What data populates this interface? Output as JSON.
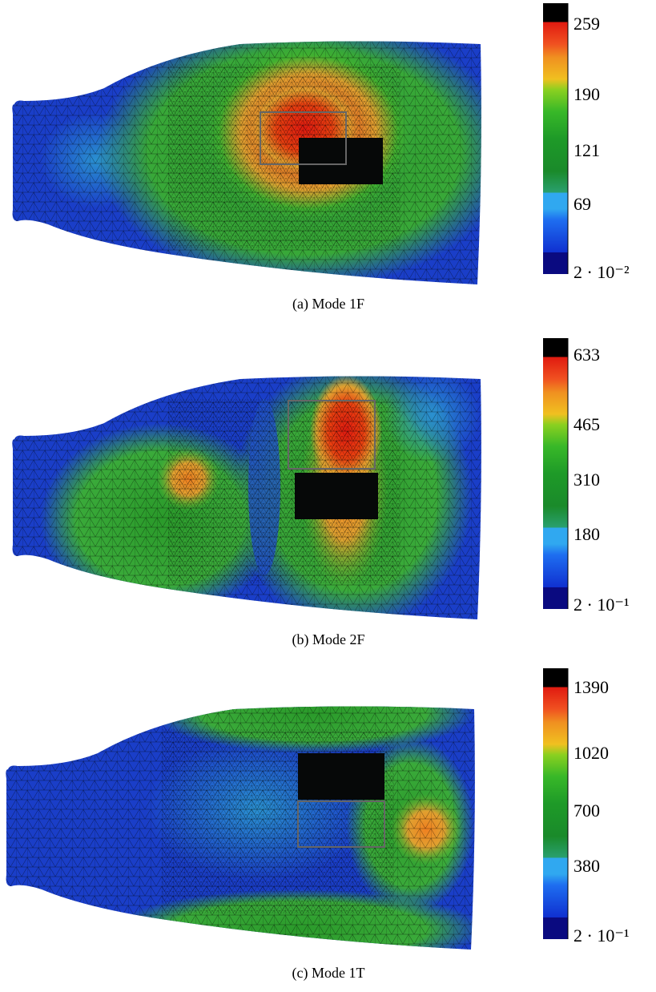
{
  "panels": [
    {
      "caption": "(a) Mode 1F",
      "colorbar": {
        "ticks": [
          "259",
          "190",
          "121",
          "69",
          "2 · 10⁻²"
        ]
      }
    },
    {
      "caption": "(b) Mode 2F",
      "colorbar": {
        "ticks": [
          "633",
          "465",
          "310",
          "180",
          "2 · 10⁻¹"
        ]
      }
    },
    {
      "caption": "(c) Mode 1T",
      "colorbar": {
        "ticks": [
          "1390",
          "1020",
          "700",
          "380",
          "2 · 10⁻¹"
        ]
      }
    }
  ]
}
